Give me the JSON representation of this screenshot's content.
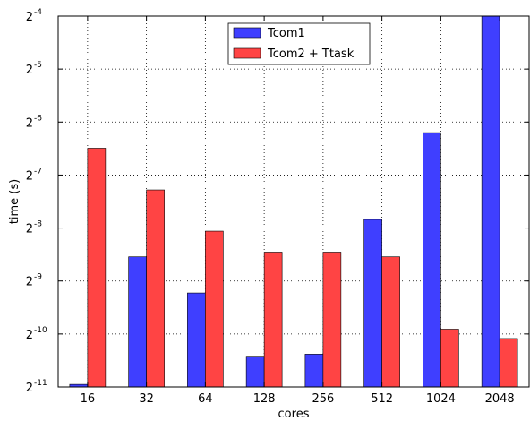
{
  "chart_data": {
    "type": "bar",
    "categories": [
      "16",
      "32",
      "64",
      "128",
      "256",
      "512",
      "1024",
      "2048"
    ],
    "series": [
      {
        "name": "Tcom1",
        "color": "#3f3fff",
        "values": [
          0.000505,
          0.00268,
          0.00167,
          0.00073,
          0.00075,
          0.00437,
          0.0136,
          0.0625
        ]
      },
      {
        "name": "Tcom2 + Ttask",
        "color": "#ff4444",
        "values": [
          0.0111,
          0.00643,
          0.00375,
          0.00285,
          0.00285,
          0.00268,
          0.00104,
          0.00092
        ]
      }
    ],
    "xlabel": "cores",
    "ylabel": "time (s)",
    "y_scale": "log2",
    "y_exponent_range": [
      -11,
      -4
    ],
    "yticks": [
      {
        "base": "2",
        "exp": "-4"
      },
      {
        "base": "2",
        "exp": "-5"
      },
      {
        "base": "2",
        "exp": "-6"
      },
      {
        "base": "2",
        "exp": "-7"
      },
      {
        "base": "2",
        "exp": "-8"
      },
      {
        "base": "2",
        "exp": "-9"
      },
      {
        "base": "2",
        "exp": "-10"
      },
      {
        "base": "2",
        "exp": "-11"
      }
    ],
    "grid": true,
    "grid_style": "dotted",
    "legend_position": "top-center"
  }
}
